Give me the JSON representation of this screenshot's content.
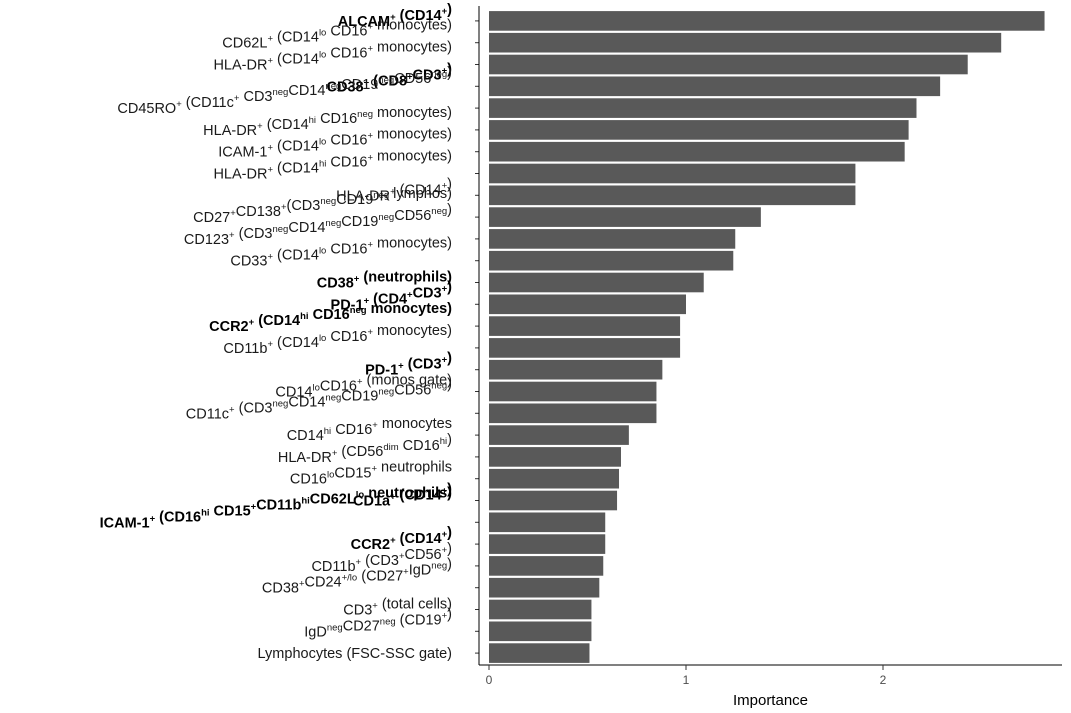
{
  "chart_data": {
    "type": "bar",
    "orientation": "horizontal",
    "xlabel": "Importance",
    "ylabel": "",
    "xlim": [
      0,
      2.85
    ],
    "xticks": [
      0,
      1,
      2
    ],
    "grid": false,
    "bar_color": "#595959",
    "categories": [
      {
        "label": "ALCAM⁺ (CD14⁺)",
        "value": 2.82,
        "bold": true,
        "rich": [
          [
            "ALCAM"
          ],
          [
            "+",
            "sup"
          ],
          [
            " (CD14"
          ],
          [
            "+",
            "sup"
          ],
          [
            ")"
          ]
        ]
      },
      {
        "label": "CD62L⁺ (CD14ˡᵒ CD16⁺ monocytes)",
        "value": 2.6,
        "bold": false,
        "rich": [
          [
            "CD62L"
          ],
          [
            "+",
            "sup"
          ],
          [
            " (CD14"
          ],
          [
            "lo",
            "sup"
          ],
          [
            " CD16"
          ],
          [
            "+",
            "sup"
          ],
          [
            " monocytes)"
          ]
        ]
      },
      {
        "label": "HLA-DR⁺ (CD14ˡᵒ CD16⁺ monocytes)",
        "value": 2.43,
        "bold": false,
        "rich": [
          [
            "HLA-DR"
          ],
          [
            "+",
            "sup"
          ],
          [
            " (CD14"
          ],
          [
            "lo",
            "sup"
          ],
          [
            " CD16"
          ],
          [
            "+",
            "sup"
          ],
          [
            " monocytes)"
          ]
        ]
      },
      {
        "label": "CD38⁺ (CD8⁺CD3⁺)",
        "value": 2.29,
        "bold": true,
        "rich": [
          [
            "CD38"
          ],
          [
            "+",
            "sup"
          ],
          [
            " (CD8"
          ],
          [
            "+",
            "sup"
          ],
          [
            "CD3"
          ],
          [
            "+",
            "sup"
          ],
          [
            ")"
          ]
        ]
      },
      {
        "label": "CD45RO⁺ (CD11c⁺ CD3ⁿᵉᵍCD14ⁿᵉᵍCD19ⁿᵉᵍCD56ⁿᵉᵍ)",
        "value": 2.17,
        "bold": false,
        "rich": [
          [
            "CD45RO"
          ],
          [
            "+",
            "sup"
          ],
          [
            " (CD11c"
          ],
          [
            "+",
            "sup"
          ],
          [
            " CD3"
          ],
          [
            "neg",
            "sup"
          ],
          [
            "CD14"
          ],
          [
            "neg",
            "sup"
          ],
          [
            "CD19"
          ],
          [
            "neg",
            "sup"
          ],
          [
            "CD56"
          ],
          [
            "neg",
            "sup"
          ],
          [
            ")"
          ]
        ]
      },
      {
        "label": "HLA-DR⁺ (CD14ʰⁱ CD16ⁿᵉᵍ monocytes)",
        "value": 2.13,
        "bold": false,
        "rich": [
          [
            "HLA-DR"
          ],
          [
            "+",
            "sup"
          ],
          [
            " (CD14"
          ],
          [
            "hi",
            "sup"
          ],
          [
            " CD16"
          ],
          [
            "neg",
            "sup"
          ],
          [
            " monocytes)"
          ]
        ]
      },
      {
        "label": "ICAM-1⁺ (CD14ˡᵒ CD16⁺ monocytes)",
        "value": 2.11,
        "bold": false,
        "rich": [
          [
            "ICAM-1"
          ],
          [
            "+",
            "sup"
          ],
          [
            " (CD14"
          ],
          [
            "lo",
            "sup"
          ],
          [
            " CD16"
          ],
          [
            "+",
            "sup"
          ],
          [
            " monocytes)"
          ]
        ]
      },
      {
        "label": "HLA-DR⁺ (CD14ʰⁱ CD16⁺ monocytes)",
        "value": 1.86,
        "bold": false,
        "rich": [
          [
            "HLA-DR"
          ],
          [
            "+",
            "sup"
          ],
          [
            " (CD14"
          ],
          [
            "hi",
            "sup"
          ],
          [
            " CD16"
          ],
          [
            "+",
            "sup"
          ],
          [
            " monocytes)"
          ]
        ]
      },
      {
        "label": "HLA-DR⁺ (CD14⁺)",
        "value": 1.86,
        "bold": false,
        "rich": [
          [
            "HLA-DR"
          ],
          [
            "+",
            "sup"
          ],
          [
            " (CD14"
          ],
          [
            "+",
            "sup"
          ],
          [
            ")"
          ]
        ]
      },
      {
        "label": "CD27⁺CD138⁺(CD3ⁿᵉᵍCD19ⁿᵉᵍ lymphos)",
        "value": 1.38,
        "bold": false,
        "rich": [
          [
            "CD27"
          ],
          [
            "+",
            "sup"
          ],
          [
            "CD138"
          ],
          [
            "+",
            "sup"
          ],
          [
            "(CD3"
          ],
          [
            "neg",
            "sup"
          ],
          [
            "CD19"
          ],
          [
            "neg",
            "sup"
          ],
          [
            " lymphos)"
          ]
        ]
      },
      {
        "label": "CD123⁺ (CD3ⁿᵉᵍCD14ⁿᵉᵍCD19ⁿᵉᵍCD56ⁿᵉᵍ)",
        "value": 1.25,
        "bold": false,
        "rich": [
          [
            "CD123"
          ],
          [
            "+",
            "sup"
          ],
          [
            " (CD3"
          ],
          [
            "neg",
            "sup"
          ],
          [
            "CD14"
          ],
          [
            "neg",
            "sup"
          ],
          [
            "CD19"
          ],
          [
            "neg",
            "sup"
          ],
          [
            "CD56"
          ],
          [
            "neg",
            "sup"
          ],
          [
            ")"
          ]
        ]
      },
      {
        "label": "CD33⁺ (CD14ˡᵒ CD16⁺ monocytes)",
        "value": 1.24,
        "bold": false,
        "rich": [
          [
            "CD33"
          ],
          [
            "+",
            "sup"
          ],
          [
            " (CD14"
          ],
          [
            "lo",
            "sup"
          ],
          [
            " CD16"
          ],
          [
            "+",
            "sup"
          ],
          [
            " monocytes)"
          ]
        ]
      },
      {
        "label": "CD38⁺ (neutrophils)",
        "value": 1.09,
        "bold": true,
        "rich": [
          [
            "CD38"
          ],
          [
            "+",
            "sup"
          ],
          [
            " (neutrophils)"
          ]
        ]
      },
      {
        "label": "PD-1⁺ (CD4⁺CD3⁺)",
        "value": 1.0,
        "bold": true,
        "rich": [
          [
            "PD-1"
          ],
          [
            "+",
            "sup"
          ],
          [
            " (CD4"
          ],
          [
            "+",
            "sup"
          ],
          [
            "CD3"
          ],
          [
            "+",
            "sup"
          ],
          [
            ")"
          ]
        ]
      },
      {
        "label": "CCR2⁺ (CD14ʰⁱ CD16ⁿᵉᵍ monocytes)",
        "value": 0.97,
        "bold": true,
        "rich": [
          [
            "CCR2"
          ],
          [
            "+",
            "sup"
          ],
          [
            " (CD14"
          ],
          [
            "hi",
            "sup"
          ],
          [
            " CD16"
          ],
          [
            "neg",
            "sup"
          ],
          [
            " monocytes)"
          ]
        ]
      },
      {
        "label": "CD11b⁺ (CD14ˡᵒ CD16⁺ monocytes)",
        "value": 0.97,
        "bold": false,
        "rich": [
          [
            "CD11b"
          ],
          [
            "+",
            "sup"
          ],
          [
            " (CD14"
          ],
          [
            "lo",
            "sup"
          ],
          [
            " CD16"
          ],
          [
            "+",
            "sup"
          ],
          [
            " monocytes)"
          ]
        ]
      },
      {
        "label": "PD-1⁺ (CD3⁺)",
        "value": 0.88,
        "bold": true,
        "rich": [
          [
            "PD-1"
          ],
          [
            "+",
            "sup"
          ],
          [
            " (CD3"
          ],
          [
            "+",
            "sup"
          ],
          [
            ")"
          ]
        ]
      },
      {
        "label": "CD14ˡᵒCD16⁺ (monos gate)",
        "value": 0.85,
        "bold": false,
        "rich": [
          [
            "CD14"
          ],
          [
            "lo",
            "sup"
          ],
          [
            "CD16"
          ],
          [
            "+",
            "sup"
          ],
          [
            " (monos gate)"
          ]
        ]
      },
      {
        "label": "CD11c⁺ (CD3ⁿᵉᵍCD14ⁿᵉᵍCD19ⁿᵉᵍCD56ⁿᵉᵍ)",
        "value": 0.85,
        "bold": false,
        "rich": [
          [
            "CD11c"
          ],
          [
            "+",
            "sup"
          ],
          [
            " (CD3"
          ],
          [
            "neg",
            "sup"
          ],
          [
            "CD14"
          ],
          [
            "neg",
            "sup"
          ],
          [
            "CD19"
          ],
          [
            "neg",
            "sup"
          ],
          [
            "CD56"
          ],
          [
            "neg",
            "sup"
          ],
          [
            ")"
          ]
        ]
      },
      {
        "label": "CD14ʰⁱ CD16⁺ monocytes",
        "value": 0.71,
        "bold": false,
        "rich": [
          [
            "CD14"
          ],
          [
            "hi",
            "sup"
          ],
          [
            " CD16"
          ],
          [
            "+",
            "sup"
          ],
          [
            " monocytes"
          ]
        ]
      },
      {
        "label": "HLA-DR⁺ (CD56ᵈⁱᵐ CD16ʰⁱ)",
        "value": 0.67,
        "bold": false,
        "rich": [
          [
            "HLA-DR"
          ],
          [
            "+",
            "sup"
          ],
          [
            " (CD56"
          ],
          [
            "dim",
            "sup"
          ],
          [
            " CD16"
          ],
          [
            "hi",
            "sup"
          ],
          [
            ")"
          ]
        ]
      },
      {
        "label": "CD16ˡᵒCD15⁺ neutrophils",
        "value": 0.66,
        "bold": false,
        "rich": [
          [
            "CD16"
          ],
          [
            "lo",
            "sup"
          ],
          [
            "CD15"
          ],
          [
            "+",
            "sup"
          ],
          [
            " neutrophils"
          ]
        ]
      },
      {
        "label": "CD1a⁺ (CD14⁺)",
        "value": 0.65,
        "bold": true,
        "rich": [
          [
            "CD1a"
          ],
          [
            "+",
            "sup"
          ],
          [
            " (CD14"
          ],
          [
            "+",
            "sup"
          ],
          [
            ")"
          ]
        ]
      },
      {
        "label": "ICAM-1⁺ (CD16ʰⁱ CD15⁺CD11bʰⁱCD62Lˡᵒ neutrophils)",
        "value": 0.59,
        "bold": true,
        "rich": [
          [
            "ICAM-1"
          ],
          [
            "+",
            "sup"
          ],
          [
            " (CD16"
          ],
          [
            "hi",
            "sup"
          ],
          [
            " CD15"
          ],
          [
            "+",
            "sup"
          ],
          [
            "CD11b"
          ],
          [
            "hi",
            "sup"
          ],
          [
            "CD62L"
          ],
          [
            "lo",
            "sup"
          ],
          [
            " neutrophils)"
          ]
        ]
      },
      {
        "label": "CCR2⁺ (CD14⁺)",
        "value": 0.59,
        "bold": true,
        "rich": [
          [
            "CCR2"
          ],
          [
            "+",
            "sup"
          ],
          [
            " (CD14"
          ],
          [
            "+",
            "sup"
          ],
          [
            ")"
          ]
        ]
      },
      {
        "label": "CD11b⁺ (CD3⁺CD56⁺)",
        "value": 0.58,
        "bold": false,
        "rich": [
          [
            "CD11b"
          ],
          [
            "+",
            "sup"
          ],
          [
            " (CD3"
          ],
          [
            "+",
            "sup"
          ],
          [
            "CD56"
          ],
          [
            "+",
            "sup"
          ],
          [
            ")"
          ]
        ]
      },
      {
        "label": "CD38⁺CD24⁺ᐟˡᵒ (CD27⁺IgDⁿᵉᵍ)",
        "value": 0.56,
        "bold": false,
        "rich": [
          [
            "CD38"
          ],
          [
            "+",
            "sup"
          ],
          [
            "CD24"
          ],
          [
            "+/lo",
            "sup"
          ],
          [
            " (CD27"
          ],
          [
            "+",
            "sup"
          ],
          [
            "IgD"
          ],
          [
            "neg",
            "sup"
          ],
          [
            ")"
          ]
        ]
      },
      {
        "label": "CD3⁺ (total cells)",
        "value": 0.52,
        "bold": false,
        "rich": [
          [
            "CD3"
          ],
          [
            "+",
            "sup"
          ],
          [
            " (total cells)"
          ]
        ]
      },
      {
        "label": "IgDⁿᵉᵍCD27ⁿᵉᵍ (CD19⁺)",
        "value": 0.52,
        "bold": false,
        "rich": [
          [
            "IgD"
          ],
          [
            "neg",
            "sup"
          ],
          [
            "CD27"
          ],
          [
            "neg",
            "sup"
          ],
          [
            " (CD19"
          ],
          [
            "+",
            "sup"
          ],
          [
            ")"
          ]
        ]
      },
      {
        "label": "Lymphocytes (FSC-SSC gate)",
        "value": 0.51,
        "bold": false,
        "rich": [
          [
            "Lymphocytes (FSC-SSC gate)"
          ]
        ]
      }
    ]
  }
}
